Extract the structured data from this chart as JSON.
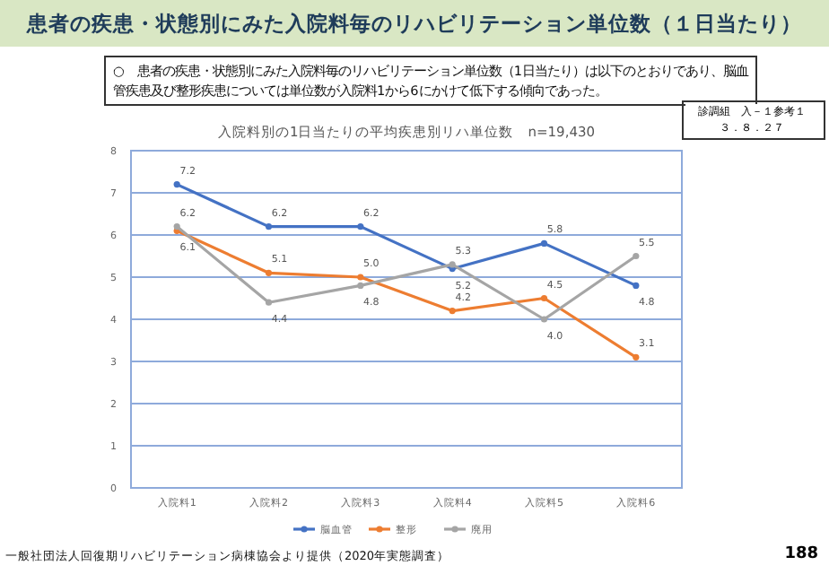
{
  "chart_data": {
    "type": "line",
    "title": "患者の疾患・状態別にみた入院料毎のリハビリテーション単位数（１日当たり）",
    "subtitle": "入院料別の1日当たりの平均疾患別リハ単位数　n=19,430",
    "categories": [
      "入院料1",
      "入院料2",
      "入院料3",
      "入院料4",
      "入院料5",
      "入院料6"
    ],
    "series": [
      {
        "name": "脳血管",
        "color": "#4472c4",
        "values": [
          7.2,
          6.2,
          6.2,
          5.2,
          5.8,
          4.8
        ],
        "value_labels": [
          "7.2",
          "6.2",
          "6.2",
          "5.2",
          "5.8",
          "4.8"
        ]
      },
      {
        "name": "整形",
        "color": "#ed7d31",
        "values": [
          6.1,
          5.1,
          5.0,
          4.2,
          4.5,
          3.1
        ],
        "value_labels": [
          "6.1",
          "5.1",
          "5.0",
          "4.2",
          "4.5",
          "3.1"
        ]
      },
      {
        "name": "廃用",
        "color": "#a5a5a5",
        "values": [
          6.2,
          4.4,
          4.8,
          5.3,
          4.0,
          5.5
        ],
        "value_labels": [
          "6.2",
          "4.4",
          "4.8",
          "5.3",
          "4.0",
          "5.5"
        ]
      }
    ],
    "ylim": [
      0,
      8
    ],
    "yticks": [
      0,
      1,
      2,
      3,
      4,
      5,
      6,
      7,
      8
    ],
    "grid": "y",
    "legend": "bottom",
    "marker": "circle",
    "annotations": [
      "○　患者の疾患・状態別にみた入院料毎のリハビリテーション単位数（1日当たり）は以下のとおりであり、脳血管疾患及び整形疾患については単位数が入院料1から6にかけて低下する傾向であった。",
      "診調組　入－１参考１",
      "３．８．２７",
      "一般社団法人回復期リハビリテーション病棟協会より提供（2020年実態調査）",
      "188"
    ]
  }
}
